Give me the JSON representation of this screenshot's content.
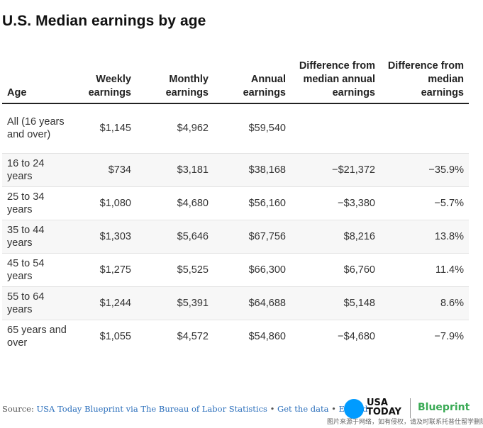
{
  "title": "U.S. Median earnings by age",
  "table": {
    "headers": [
      "Age",
      "Weekly earnings",
      "Monthly earnings",
      "Annual earnings",
      "Difference from median annual earnings",
      "Difference from median earnings"
    ],
    "rows": [
      [
        "All (16 years and over)",
        "$1,145",
        "$4,962",
        "$59,540",
        "",
        ""
      ],
      [
        "16 to 24 years",
        "$734",
        "$3,181",
        "$38,168",
        "−$21,372",
        "−35.9%"
      ],
      [
        "25 to 34 years",
        "$1,080",
        "$4,680",
        "$56,160",
        "−$3,380",
        "−5.7%"
      ],
      [
        "35 to 44 years",
        "$1,303",
        "$5,646",
        "$67,756",
        "$8,216",
        "13.8%"
      ],
      [
        "45 to 54 years",
        "$1,275",
        "$5,525",
        "$66,300",
        "$6,760",
        "11.4%"
      ],
      [
        "55 to 64 years",
        "$1,244",
        "$5,391",
        "$64,688",
        "$5,148",
        "8.6%"
      ],
      [
        "65 years and over",
        "$1,055",
        "$4,572",
        "$54,860",
        "−$4,680",
        "−7.9%"
      ]
    ]
  },
  "footer": {
    "source_label": "Source:",
    "source_link": "USA Today Blueprint via The Bureau of Labor Statistics",
    "separator": "•",
    "get_data_link": "Get the data",
    "embed_link": "Embed"
  },
  "logos": {
    "usa_line1": "USA",
    "usa_line2": "TODAY",
    "blueprint": "Blueprint"
  },
  "watermark": "图片来源于网络，如有侵权，请及时联系托普仕留学删除",
  "colors": {
    "link": "#2a6ebb",
    "usa_today_blue": "#009bff",
    "blueprint_green": "#3aaa55",
    "alt_row": "#f7f7f7"
  }
}
